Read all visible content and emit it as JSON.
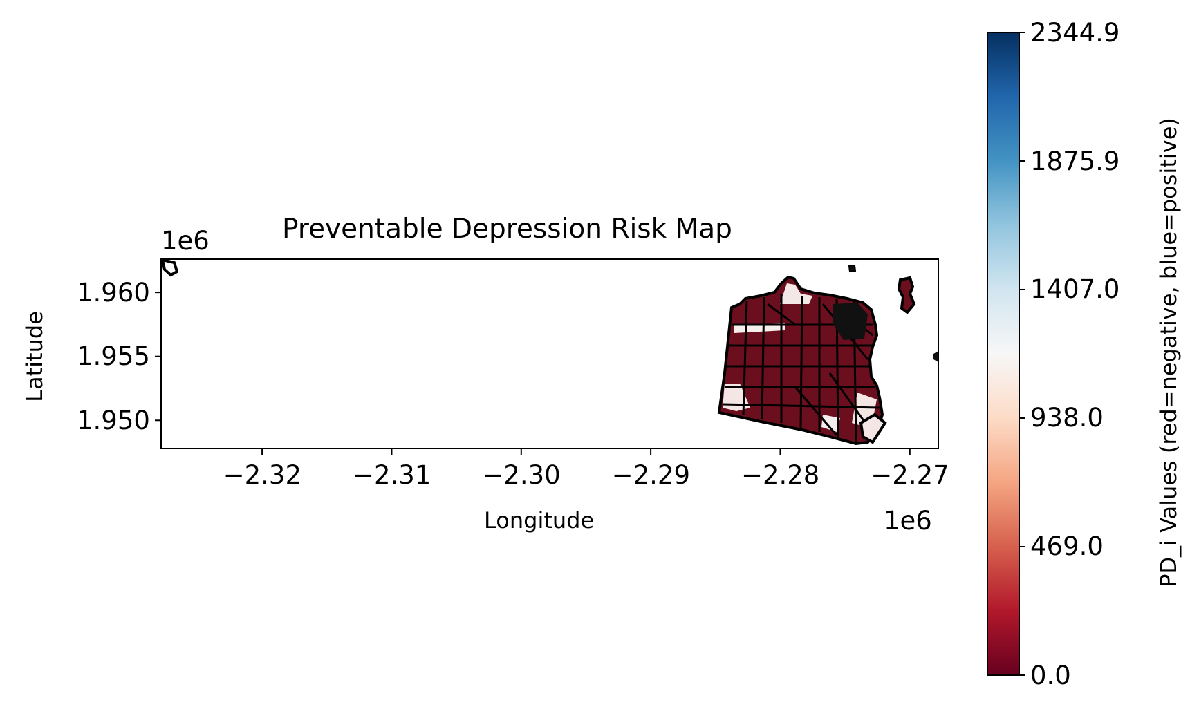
{
  "chart_data": {
    "type": "choropleth map",
    "title": "Preventable Depression Risk Map",
    "xlabel": "Longitude",
    "ylabel": "Latitude",
    "x_offset_label": "1e6",
    "y_offset_label": "1e6",
    "x_ticks": [
      "−2.32",
      "−2.31",
      "−2.30",
      "−2.29",
      "−2.28",
      "−2.27"
    ],
    "x_tick_values": [
      -2.32,
      -2.31,
      -2.3,
      -2.29,
      -2.28,
      -2.27
    ],
    "y_ticks": [
      "1.960",
      "1.955",
      "1.950"
    ],
    "y_tick_values": [
      1.96,
      1.955,
      1.95
    ],
    "xlim": [
      -2.3278,
      -2.2678
    ],
    "ylim": [
      1.9478,
      1.9626
    ],
    "colorbar": {
      "label": "PD_i Values (red=negative, blue=positive)",
      "ticks": [
        "0.0",
        "469.0",
        "938.0",
        "1407.0",
        "1875.9",
        "2344.9"
      ],
      "tick_values": [
        0.0,
        469.0,
        938.0,
        1407.0,
        1875.9,
        2344.9
      ],
      "range": [
        0.0,
        2344.9
      ],
      "colormap": "RdBu",
      "colors": [
        "#67001f",
        "#b2182b",
        "#d6604d",
        "#f4a582",
        "#fddbc7",
        "#f7f7f7",
        "#d1e5f0",
        "#92c5de",
        "#4393c3",
        "#2166ac",
        "#053061"
      ]
    },
    "grid": false,
    "fill_color_dominant": "#6b0f1f",
    "boundary_color": "#000000"
  }
}
